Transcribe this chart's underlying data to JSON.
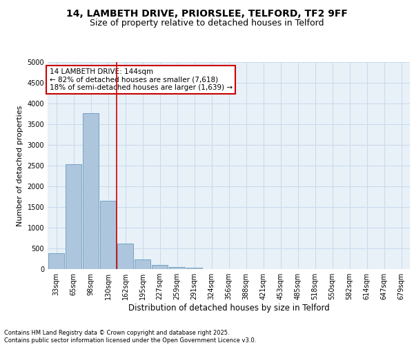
{
  "title_line1": "14, LAMBETH DRIVE, PRIORSLEE, TELFORD, TF2 9FF",
  "title_line2": "Size of property relative to detached houses in Telford",
  "xlabel": "Distribution of detached houses by size in Telford",
  "ylabel": "Number of detached properties",
  "categories": [
    "33sqm",
    "65sqm",
    "98sqm",
    "130sqm",
    "162sqm",
    "195sqm",
    "227sqm",
    "259sqm",
    "291sqm",
    "324sqm",
    "356sqm",
    "388sqm",
    "421sqm",
    "453sqm",
    "485sqm",
    "518sqm",
    "550sqm",
    "582sqm",
    "614sqm",
    "647sqm",
    "679sqm"
  ],
  "values": [
    380,
    2540,
    3760,
    1650,
    620,
    230,
    100,
    55,
    30,
    0,
    0,
    0,
    0,
    0,
    0,
    0,
    0,
    0,
    0,
    0,
    0
  ],
  "bar_color": "#aec6dd",
  "bar_edge_color": "#6699bb",
  "vline_x": 3.5,
  "vline_color": "#cc0000",
  "annotation_text": "14 LAMBETH DRIVE: 144sqm\n← 82% of detached houses are smaller (7,618)\n18% of semi-detached houses are larger (1,639) →",
  "annotation_box_color": "#cc0000",
  "ylim": [
    0,
    5000
  ],
  "yticks": [
    0,
    500,
    1000,
    1500,
    2000,
    2500,
    3000,
    3500,
    4000,
    4500,
    5000
  ],
  "grid_color": "#c8daea",
  "background_color": "#e8f0f8",
  "footer_text": "Contains HM Land Registry data © Crown copyright and database right 2025.\nContains public sector information licensed under the Open Government Licence v3.0.",
  "title_fontsize": 10,
  "subtitle_fontsize": 9,
  "axis_label_fontsize": 8,
  "tick_fontsize": 7,
  "annotation_fontsize": 7.5,
  "footer_fontsize": 6
}
